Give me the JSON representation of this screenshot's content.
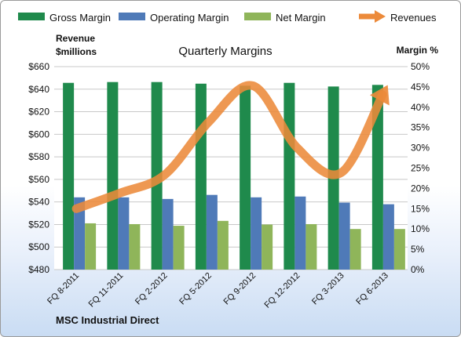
{
  "chart_data": {
    "type": "bar",
    "title": "Quarterly Margins",
    "company": "MSC Industrial Direct",
    "categories": [
      "FQ 8-2011",
      "FQ 11-2011",
      "FQ 2-2012",
      "FQ 5-2012",
      "FQ 9-2012",
      "FQ 12-2012",
      "FQ 3-2013",
      "FQ 6-2013"
    ],
    "left_axis": {
      "title_line1": "Revenue",
      "title_line2": "$millions",
      "ylim": [
        480,
        660
      ],
      "ticks": [
        "$480",
        "$500",
        "$520",
        "$540",
        "$560",
        "$580",
        "$600",
        "$620",
        "$640",
        "$660"
      ]
    },
    "right_axis": {
      "title": "Margin %",
      "ylim": [
        0,
        50
      ],
      "ticks": [
        "0%",
        "5%",
        "10%",
        "15%",
        "20%",
        "25%",
        "30%",
        "35%",
        "40%",
        "45%",
        "50%"
      ]
    },
    "series": [
      {
        "name": "Gross Margin",
        "axis": "right",
        "kind": "bar",
        "color": "#1f8a4c",
        "values": [
          46.0,
          46.2,
          46.2,
          45.8,
          45.3,
          46.0,
          45.1,
          45.5
        ]
      },
      {
        "name": "Operating Margin",
        "axis": "right",
        "kind": "bar",
        "color": "#4f7ab8",
        "values": [
          17.8,
          17.8,
          17.4,
          18.4,
          17.8,
          18.0,
          16.5,
          16.1
        ]
      },
      {
        "name": "Net Margin",
        "axis": "right",
        "kind": "bar",
        "color": "#8fb55a",
        "values": [
          11.4,
          11.2,
          10.8,
          12.0,
          11.1,
          11.2,
          10.0,
          10.0
        ]
      },
      {
        "name": "Revenues",
        "axis": "left",
        "kind": "line",
        "color": "#ec8a3a",
        "values": [
          534,
          548,
          564,
          611,
          643,
          588,
          566,
          640
        ]
      }
    ],
    "legend": [
      "Gross Margin",
      "Operating Margin",
      "Net Margin",
      "Revenues"
    ],
    "legend_position": "top",
    "grid": true
  }
}
